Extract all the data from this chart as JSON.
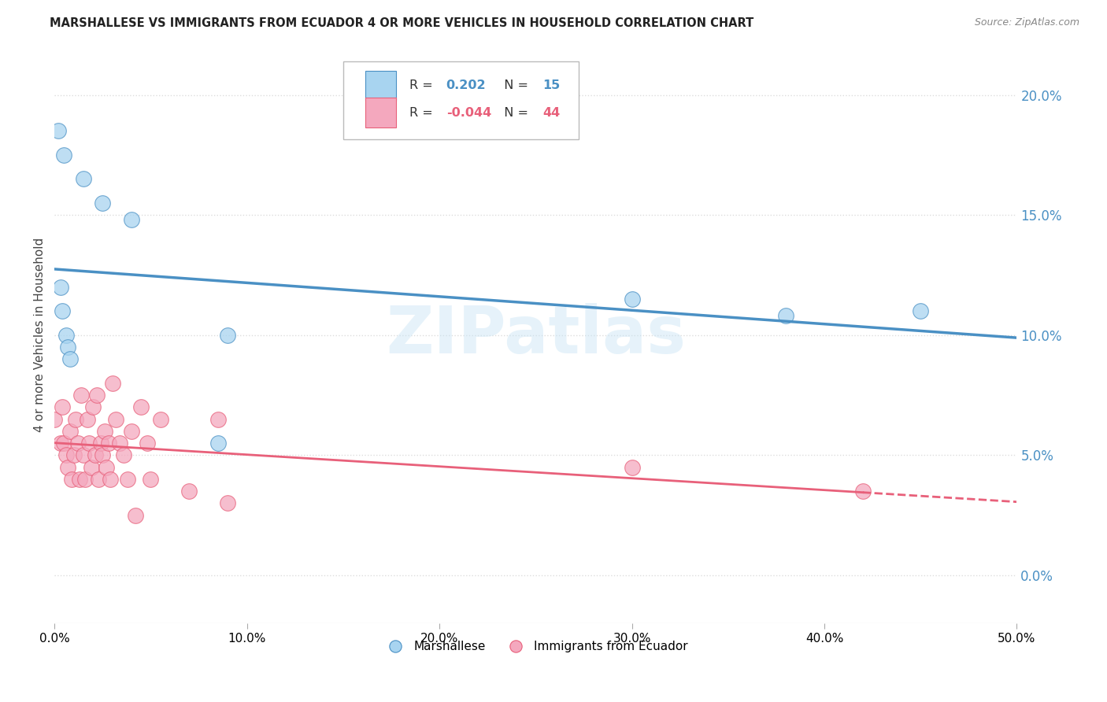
{
  "title": "MARSHALLESE VS IMMIGRANTS FROM ECUADOR 4 OR MORE VEHICLES IN HOUSEHOLD CORRELATION CHART",
  "source": "Source: ZipAtlas.com",
  "ylabel": "4 or more Vehicles in Household",
  "legend_1_label": "Marshallese",
  "legend_2_label": "Immigrants from Ecuador",
  "R1": 0.202,
  "N1": 15,
  "R2": -0.044,
  "N2": 44,
  "color_blue": "#a8d4f0",
  "color_pink": "#f4a8be",
  "color_blue_line": "#4a90c4",
  "color_pink_line": "#e8607a",
  "marshallese_x": [
    0.002,
    0.005,
    0.015,
    0.025,
    0.003,
    0.004,
    0.006,
    0.007,
    0.008,
    0.04,
    0.085,
    0.09,
    0.3,
    0.38,
    0.45
  ],
  "marshallese_y": [
    0.185,
    0.175,
    0.165,
    0.155,
    0.12,
    0.11,
    0.1,
    0.095,
    0.09,
    0.148,
    0.055,
    0.1,
    0.115,
    0.108,
    0.11
  ],
  "ecuador_x": [
    0.0,
    0.003,
    0.004,
    0.005,
    0.006,
    0.007,
    0.008,
    0.009,
    0.01,
    0.011,
    0.012,
    0.013,
    0.014,
    0.015,
    0.016,
    0.017,
    0.018,
    0.019,
    0.02,
    0.021,
    0.022,
    0.023,
    0.024,
    0.025,
    0.026,
    0.027,
    0.028,
    0.029,
    0.03,
    0.032,
    0.034,
    0.036,
    0.038,
    0.04,
    0.042,
    0.045,
    0.048,
    0.05,
    0.055,
    0.07,
    0.085,
    0.09,
    0.3,
    0.42
  ],
  "ecuador_y": [
    0.065,
    0.055,
    0.07,
    0.055,
    0.05,
    0.045,
    0.06,
    0.04,
    0.05,
    0.065,
    0.055,
    0.04,
    0.075,
    0.05,
    0.04,
    0.065,
    0.055,
    0.045,
    0.07,
    0.05,
    0.075,
    0.04,
    0.055,
    0.05,
    0.06,
    0.045,
    0.055,
    0.04,
    0.08,
    0.065,
    0.055,
    0.05,
    0.04,
    0.06,
    0.025,
    0.07,
    0.055,
    0.04,
    0.065,
    0.035,
    0.065,
    0.03,
    0.045,
    0.035
  ],
  "xmin": 0.0,
  "xmax": 0.5,
  "ymin": -0.02,
  "ymax": 0.22,
  "yticks": [
    0.0,
    0.05,
    0.1,
    0.15,
    0.2
  ],
  "xticks": [
    0.0,
    0.1,
    0.2,
    0.3,
    0.4,
    0.5
  ],
  "watermark_text": "ZIPatlas",
  "background_color": "#ffffff",
  "grid_color": "#dddddd"
}
